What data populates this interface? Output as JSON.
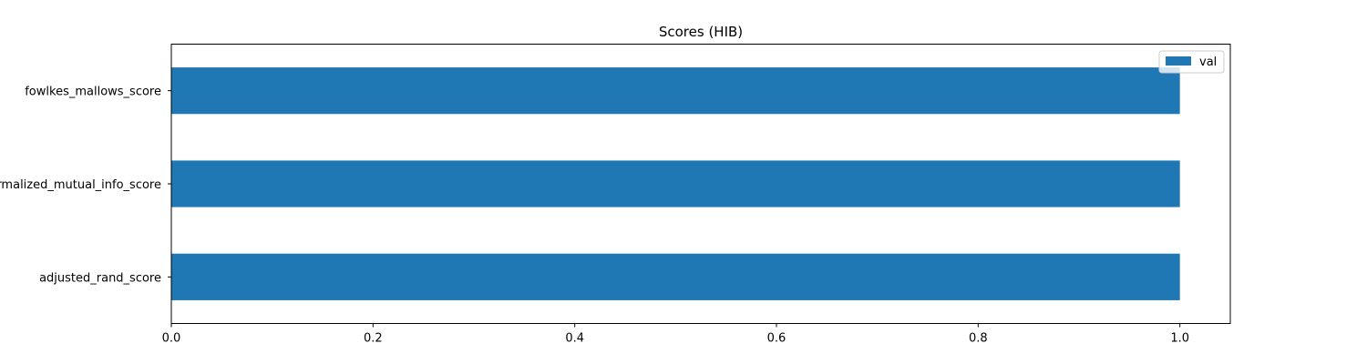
{
  "chart_data": {
    "type": "bar",
    "orientation": "horizontal",
    "title": "Scores (HIB)",
    "xlabel": "",
    "ylabel": "",
    "categories": [
      "adjusted_rand_score",
      "normalized_mutual_info_score",
      "fowlkes_mallows_score"
    ],
    "series": [
      {
        "name": "val",
        "values": [
          1.0,
          1.0,
          1.0
        ],
        "color": "#1f77b4"
      }
    ],
    "xlim": [
      0,
      1.05
    ],
    "xticks": [
      0.0,
      0.2,
      0.4,
      0.6,
      0.8,
      1.0
    ],
    "xtick_labels": [
      "0.0",
      "0.2",
      "0.4",
      "0.6",
      "0.8",
      "1.0"
    ],
    "grid": false,
    "legend_position": "top-right"
  }
}
